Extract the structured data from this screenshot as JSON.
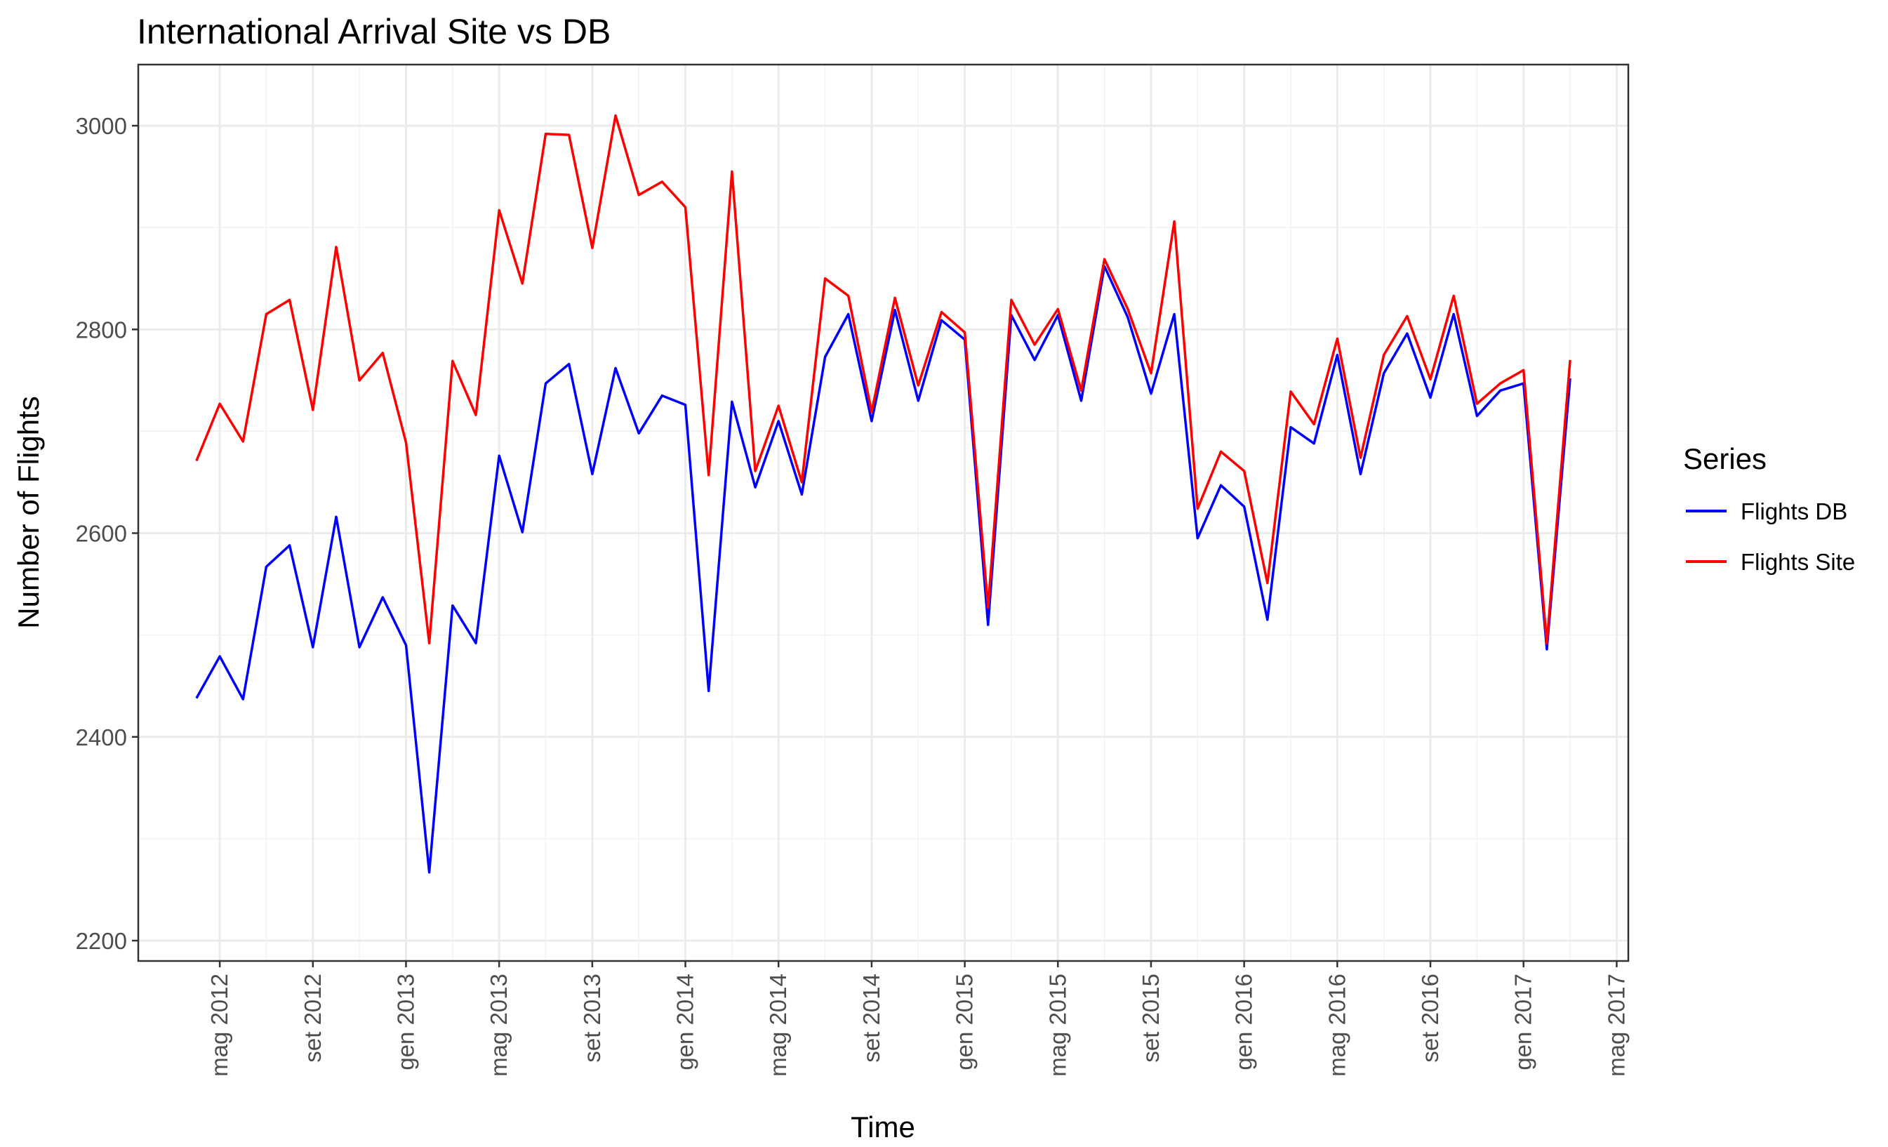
{
  "chart_data": {
    "type": "line",
    "title": "International Arrival Site vs DB",
    "xlabel": "Time",
    "ylabel": "Number of Flights",
    "x_start": "2012-04",
    "x_labels": [
      "mag 2012",
      "set 2012",
      "gen 2013",
      "mag 2013",
      "set 2013",
      "gen 2014",
      "mag 2014",
      "set 2014",
      "gen 2015",
      "mag 2015",
      "set 2015",
      "gen 2016",
      "mag 2016",
      "set 2016",
      "gen 2017",
      "mag 2017"
    ],
    "x_ticks": [
      "2012-05",
      "2012-09",
      "2013-01",
      "2013-05",
      "2013-09",
      "2014-01",
      "2014-05",
      "2014-09",
      "2015-01",
      "2015-05",
      "2015-09",
      "2016-01",
      "2016-05",
      "2016-09",
      "2017-01",
      "2017-05"
    ],
    "yticks": [
      2200,
      2400,
      2600,
      2800,
      3000
    ],
    "ylim": [
      2180,
      3060
    ],
    "grid": true,
    "legend_title": "Series",
    "legend_position": "right",
    "series": [
      {
        "name": "Flights DB",
        "color": "#0000FF",
        "values": [
          2438,
          2479,
          2437,
          2567,
          2588,
          2488,
          2616,
          2488,
          2537,
          2490,
          2267,
          2529,
          2492,
          2676,
          2601,
          2747,
          2766,
          2658,
          2762,
          2698,
          2735,
          2726,
          2445,
          2729,
          2645,
          2710,
          2638,
          2773,
          2815,
          2710,
          2819,
          2730,
          2809,
          2790,
          2510,
          2814,
          2770,
          2814,
          2730,
          2862,
          2812,
          2737,
          2815,
          2595,
          2647,
          2626,
          2515,
          2704,
          2688,
          2775,
          2658,
          2757,
          2796,
          2733,
          2815,
          2715,
          2740,
          2747,
          2486,
          2752
        ]
      },
      {
        "name": "Flights Site",
        "color": "#FF0000",
        "values": [
          2671,
          2727,
          2690,
          2815,
          2829,
          2721,
          2881,
          2750,
          2777,
          2689,
          2492,
          2769,
          2716,
          2917,
          2845,
          2992,
          2991,
          2880,
          3010,
          2932,
          2945,
          2920,
          2657,
          2955,
          2661,
          2725,
          2650,
          2850,
          2833,
          2719,
          2831,
          2745,
          2817,
          2797,
          2527,
          2829,
          2785,
          2820,
          2740,
          2869,
          2820,
          2757,
          2906,
          2624,
          2680,
          2661,
          2551,
          2739,
          2707,
          2791,
          2674,
          2775,
          2813,
          2751,
          2833,
          2727,
          2747,
          2760,
          2492,
          2770
        ]
      }
    ]
  }
}
